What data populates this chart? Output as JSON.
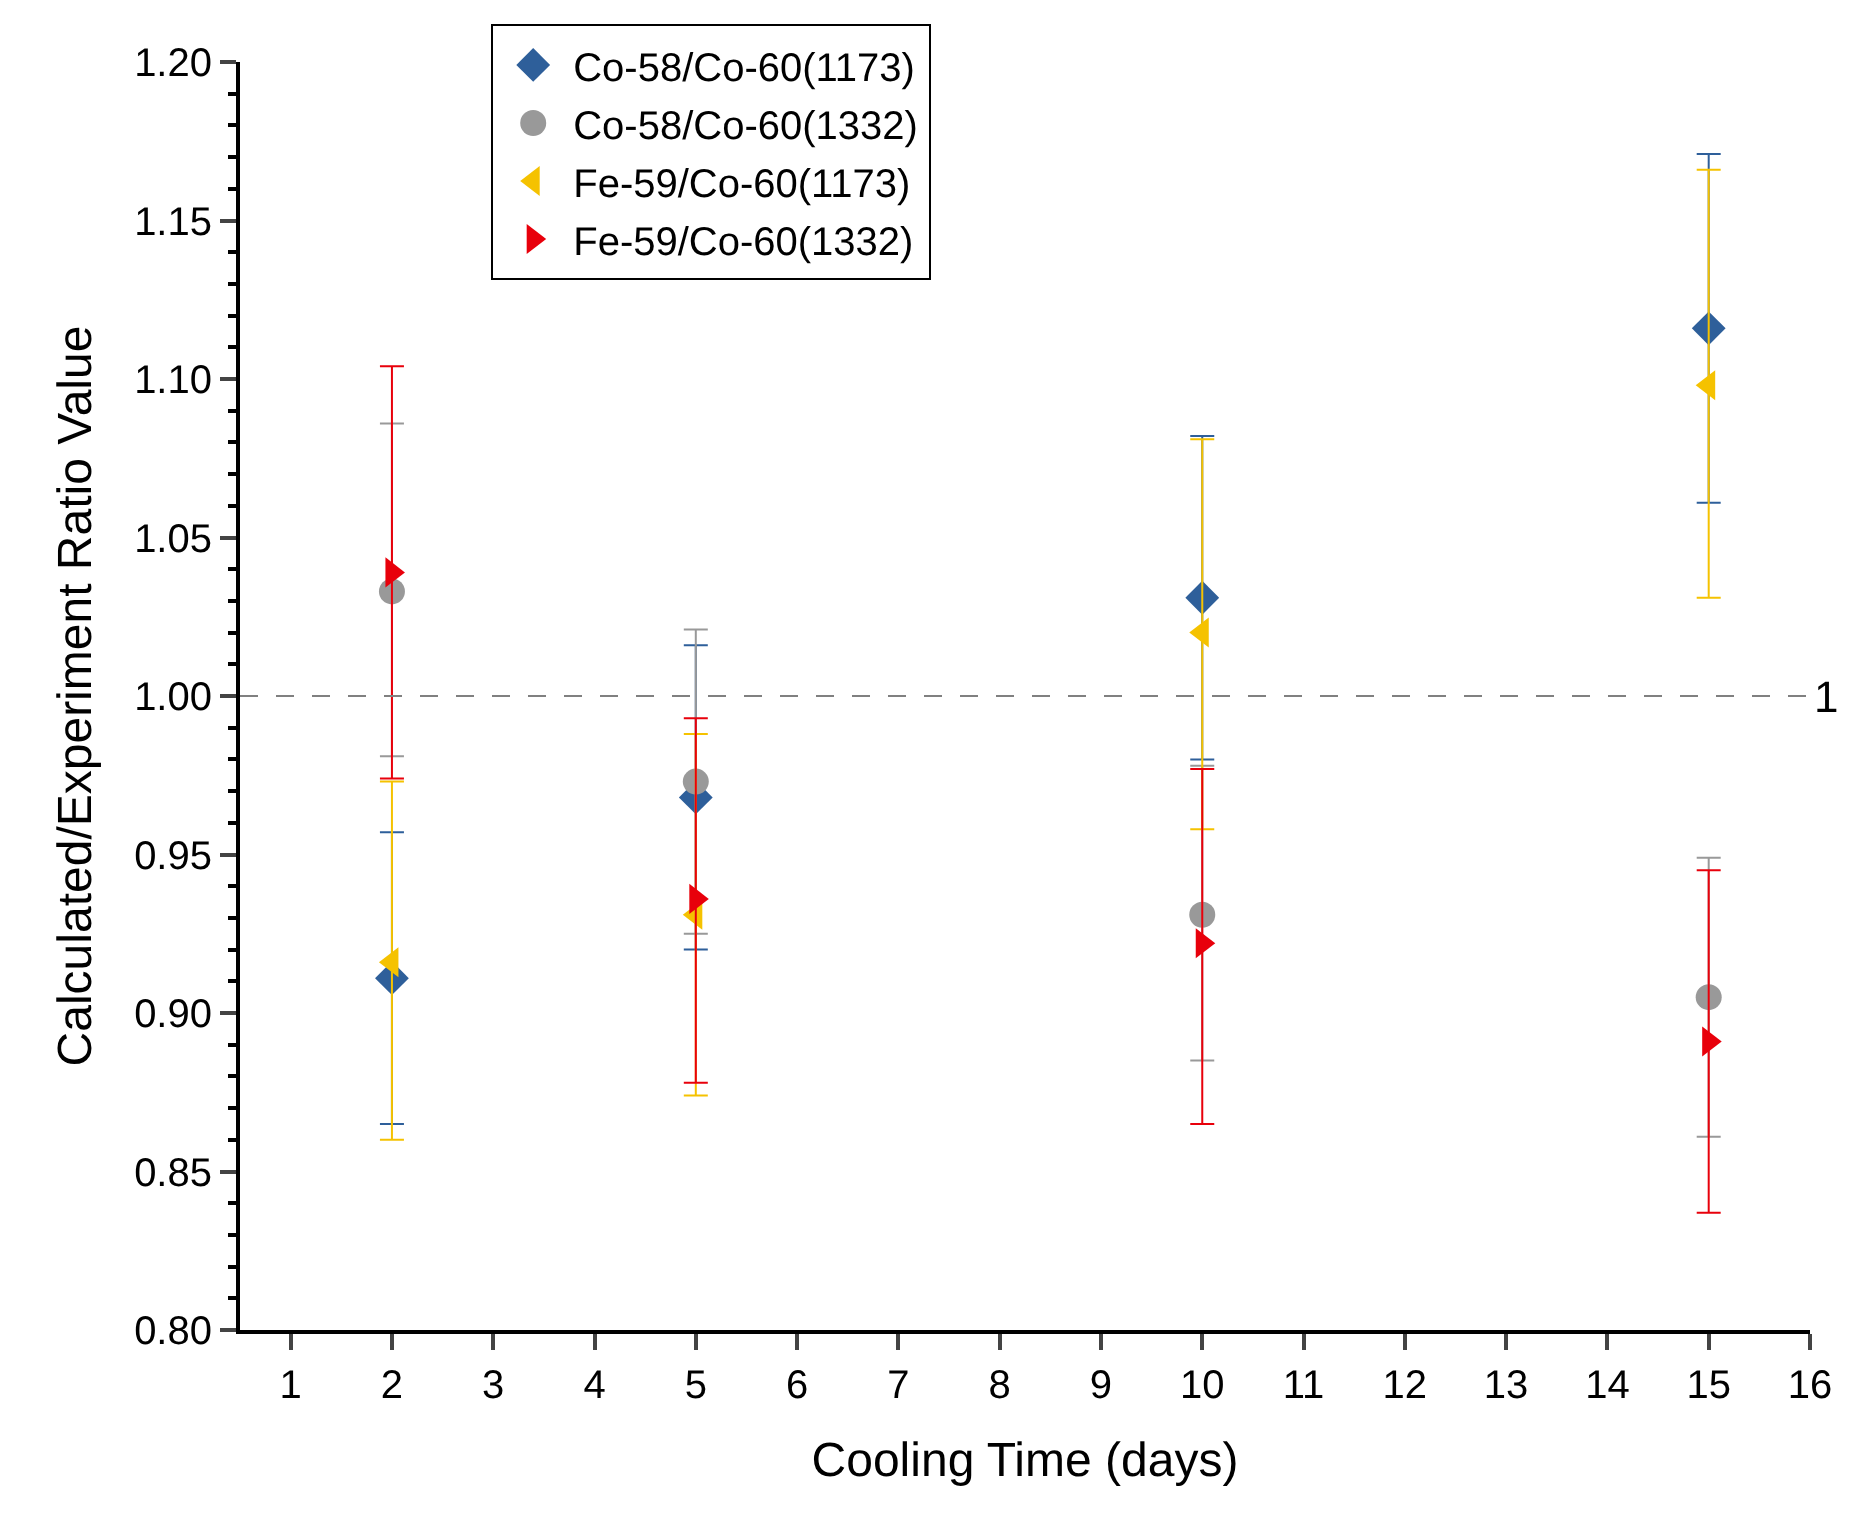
{
  "chart_data": {
    "type": "scatter",
    "xlabel": "Cooling Time (days)",
    "ylabel": "Calculated/Experiment Ratio Value",
    "x": [
      2,
      5,
      10,
      15
    ],
    "series": [
      {
        "name": "Co-58/Co-60(1173)",
        "color": "#2e5f9a",
        "marker": "diamond",
        "values": [
          0.911,
          0.968,
          1.031,
          1.116
        ],
        "errors": [
          [
            0.865,
            0.957
          ],
          [
            0.92,
            1.016
          ],
          [
            0.98,
            1.082
          ],
          [
            1.061,
            1.171
          ]
        ]
      },
      {
        "name": "Co-58/Co-60(1332)",
        "color": "#999999",
        "marker": "circle",
        "values": [
          1.033,
          0.973,
          0.931,
          0.905
        ],
        "errors": [
          [
            0.981,
            1.086
          ],
          [
            0.925,
            1.021
          ],
          [
            0.885,
            0.978
          ],
          [
            0.861,
            0.949
          ]
        ]
      },
      {
        "name": "Fe-59/Co-60(1173)",
        "color": "#f5c200",
        "marker": "triangle-left",
        "values": [
          0.916,
          0.931,
          1.02,
          1.098
        ],
        "errors": [
          [
            0.86,
            0.973
          ],
          [
            0.874,
            0.988
          ],
          [
            0.958,
            1.081
          ],
          [
            1.031,
            1.166
          ]
        ]
      },
      {
        "name": "Fe-59/Co-60(1332)",
        "color": "#e8000b",
        "marker": "triangle-right",
        "values": [
          1.039,
          0.936,
          0.922,
          0.891
        ],
        "errors": [
          [
            0.974,
            1.104
          ],
          [
            0.878,
            0.993
          ],
          [
            0.865,
            0.977
          ],
          [
            0.837,
            0.945
          ]
        ]
      }
    ],
    "xlim": [
      0.5,
      16
    ],
    "xticks": [
      1,
      2,
      3,
      4,
      5,
      6,
      7,
      8,
      9,
      10,
      11,
      12,
      13,
      14,
      15,
      16
    ],
    "ylim": [
      0.8,
      1.2
    ],
    "yticks": [
      {
        "value": 0.8,
        "label": "0.80"
      },
      {
        "value": 0.85,
        "label": "0.85"
      },
      {
        "value": 0.9,
        "label": "0.90"
      },
      {
        "value": 0.95,
        "label": "0.95"
      },
      {
        "value": 1,
        "label": "1.00"
      },
      {
        "value": 1.05,
        "label": "1.05"
      },
      {
        "value": 1.1,
        "label": "1.10"
      },
      {
        "value": 1.15,
        "label": "1.15"
      },
      {
        "value": 1.2,
        "label": "1.20"
      }
    ],
    "ref_lines": [
      {
        "axis": "y",
        "value": 1,
        "label": "1",
        "color": "#808080",
        "line_style": "dashed"
      }
    ],
    "grid": false,
    "legend": "top"
  }
}
